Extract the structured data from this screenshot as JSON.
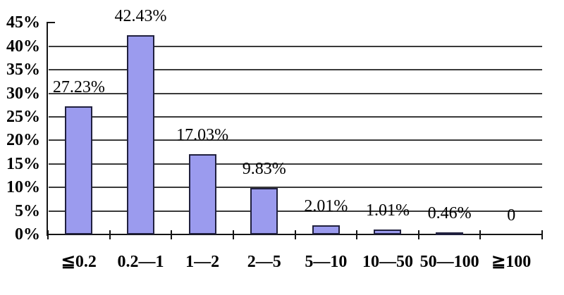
{
  "chart_data": {
    "type": "bar",
    "title": "",
    "categories": [
      "≦0.2",
      "0.2—1",
      "1—2",
      "2—5",
      "5—10",
      "10—50",
      "50—100",
      "≧100"
    ],
    "values": [
      27.23,
      42.43,
      17.03,
      9.83,
      2.01,
      1.01,
      0.46,
      0
    ],
    "value_labels": [
      "27.23%",
      "42.43%",
      "17.03%",
      "9.83%",
      "2.01%",
      "1.01%",
      "0.46%",
      "0"
    ],
    "xlabel": "",
    "ylabel": "",
    "ylim": [
      0,
      45
    ],
    "y_ticks": [
      {
        "value": 0,
        "label": "0%"
      },
      {
        "value": 5,
        "label": "5%"
      },
      {
        "value": 10,
        "label": "10%"
      },
      {
        "value": 15,
        "label": "15%"
      },
      {
        "value": 20,
        "label": "20%"
      },
      {
        "value": 25,
        "label": "25%"
      },
      {
        "value": 30,
        "label": "30%"
      },
      {
        "value": 35,
        "label": "35%"
      },
      {
        "value": 40,
        "label": "40%"
      },
      {
        "value": 45,
        "label": "45%"
      }
    ],
    "grid": true,
    "gridline_values": [
      5,
      10,
      15,
      20,
      25,
      30,
      35,
      40
    ],
    "legend": false,
    "colors": {
      "bar_fill": "#9b9bee",
      "bar_border": "#20203e",
      "gridline": "#3a3a3a",
      "axis": "#151515",
      "text": "#000000",
      "background": "#ffffff"
    }
  }
}
